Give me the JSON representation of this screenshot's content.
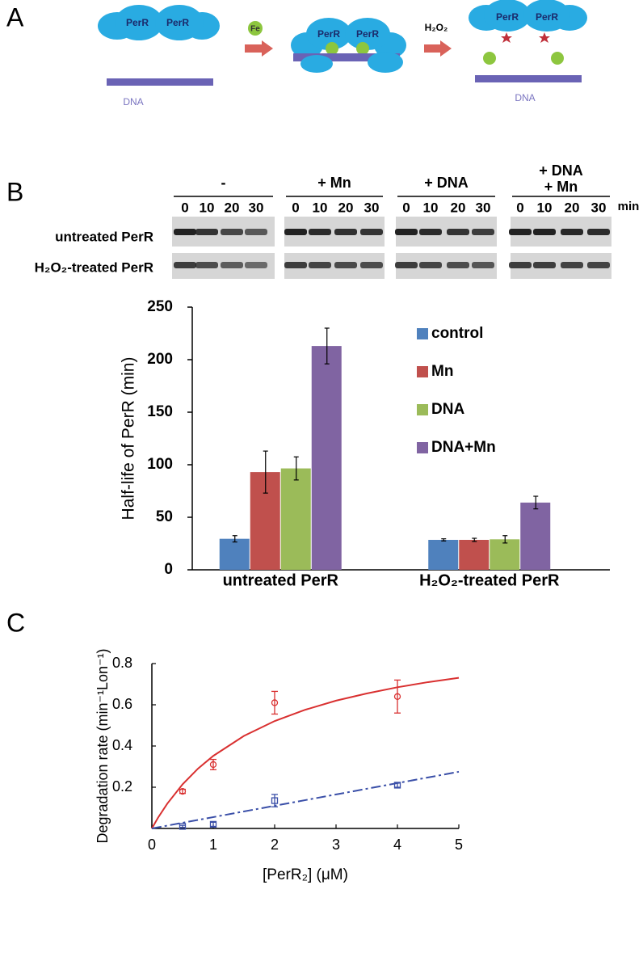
{
  "panel_labels": [
    "A",
    "B",
    "C"
  ],
  "diagram": {
    "complexes": [
      [
        "PerR",
        "PerR"
      ],
      [
        "PerR",
        "PerR"
      ],
      [
        "PerR",
        "PerR"
      ]
    ],
    "metal": "Fe",
    "oxidant": "H₂O₂",
    "dna_labels": [
      "DNA",
      "DNA"
    ]
  },
  "gel": {
    "groups": [
      {
        "label": [
          "-"
        ],
        "times": [
          0,
          10,
          20,
          30
        ]
      },
      {
        "label": [
          "+ Mn"
        ],
        "times": [
          0,
          10,
          20,
          30
        ]
      },
      {
        "label": [
          "+ DNA"
        ],
        "times": [
          0,
          10,
          20,
          30
        ]
      },
      {
        "label": [
          "+ DNA",
          "+ Mn"
        ],
        "times": [
          0,
          10,
          20,
          30
        ]
      }
    ],
    "unit": "min",
    "rows": [
      "untreated PerR",
      "H₂O₂-treated PerR"
    ]
  },
  "chart_data": [
    {
      "type": "bar",
      "y_label": "Half-life of  PerR (min)",
      "categories": [
        "untreated PerR",
        "H₂O₂-treated PerR"
      ],
      "series": [
        {
          "name": "control",
          "color": "#4f81bd",
          "values": [
            29.5,
            28.5
          ],
          "errors": [
            3,
            1
          ]
        },
        {
          "name": "Mn",
          "color": "#c0504d",
          "values": [
            93,
            28.5
          ],
          "errors": [
            20,
            1.5
          ]
        },
        {
          "name": "DNA",
          "color": "#9bbb59",
          "values": [
            96.5,
            29
          ],
          "errors": [
            11,
            3.5
          ]
        },
        {
          "name": "DNA+Mn",
          "color": "#8064a2",
          "values": [
            213,
            64
          ],
          "errors": [
            17,
            6
          ]
        }
      ],
      "ylim": [
        0,
        250
      ],
      "yticks": [
        0,
        50,
        100,
        150,
        200,
        250
      ],
      "legend": "top-right"
    },
    {
      "type": "scatter",
      "x_label": "[PerR₂] (μM)",
      "y_label": "Degradation rate (min⁻¹Lon⁻¹)",
      "series": [
        {
          "color": "#d93030",
          "marker": "circle",
          "x": [
            0.5,
            1,
            2,
            4
          ],
          "values": [
            0.18,
            0.31,
            0.61,
            0.64
          ],
          "errors": [
            0.01,
            0.025,
            0.055,
            0.08
          ]
        },
        {
          "color": "#3a4fa8",
          "marker": "square",
          "x": [
            0.5,
            1,
            2,
            4
          ],
          "values": [
            0.01,
            0.02,
            0.135,
            0.21
          ],
          "errors": [
            0.005,
            0.01,
            0.03,
            0.01
          ]
        },
        {
          "color": "#d93030",
          "line": "solid",
          "x": [
            0,
            0.1,
            0.25,
            0.5,
            0.75,
            1,
            1.5,
            2,
            2.5,
            3,
            3.5,
            4,
            4.5,
            5
          ],
          "values": [
            0,
            0.052,
            0.12,
            0.214,
            0.29,
            0.352,
            0.449,
            0.521,
            0.576,
            0.62,
            0.655,
            0.685,
            0.71,
            0.731
          ]
        },
        {
          "color": "#3a4fa8",
          "line": "dashed",
          "x": [
            0,
            5
          ],
          "values": [
            0,
            0.275
          ]
        }
      ],
      "xlim": [
        0,
        5
      ],
      "xticks": [
        0,
        1,
        2,
        3,
        4,
        5
      ],
      "ylim": [
        0,
        0.8
      ],
      "yticks": [
        0.2,
        0.4,
        0.6,
        0.8
      ]
    }
  ]
}
